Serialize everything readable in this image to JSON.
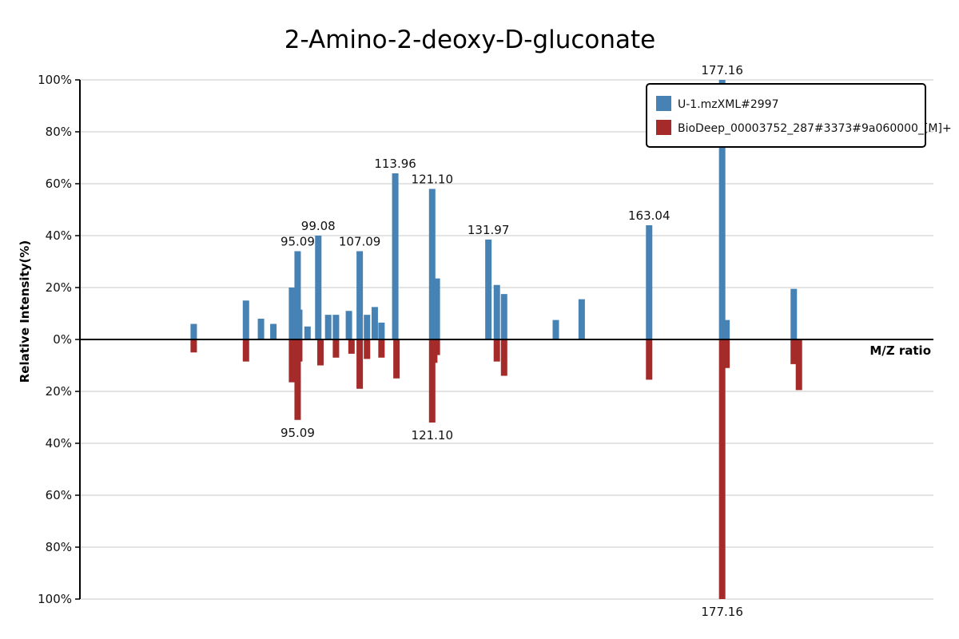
{
  "chart_data": {
    "type": "bar",
    "title": "2-Amino-2-deoxy-D-gluconate",
    "xlabel": "M/Z ratio",
    "ylabel": "Relative Intensity(%)",
    "y_ticks_top": [
      "100%",
      "80%",
      "60%",
      "40%",
      "20%",
      "0%"
    ],
    "y_ticks_bottom": [
      "20%",
      "40%",
      "60%",
      "80%",
      "100%"
    ],
    "ylim": [
      -100,
      100
    ],
    "xlim": [
      53,
      218
    ],
    "grid": true,
    "legend_position": "top-right",
    "series": [
      {
        "name": "U-1.mzXML#2997",
        "color": "#4682B4",
        "direction": "up",
        "peaks": [
          {
            "mz": 75.0,
            "intensity": 6
          },
          {
            "mz": 85.1,
            "intensity": 15
          },
          {
            "mz": 88.0,
            "intensity": 8
          },
          {
            "mz": 90.4,
            "intensity": 6
          },
          {
            "mz": 94.0,
            "intensity": 20
          },
          {
            "mz": 95.4,
            "intensity": 11.5
          },
          {
            "mz": 97.0,
            "intensity": 5
          },
          {
            "mz": 101.0,
            "intensity": 9.5
          },
          {
            "mz": 102.5,
            "intensity": 9.5
          },
          {
            "mz": 95.09,
            "intensity": 34,
            "label": "95.09"
          },
          {
            "mz": 105.0,
            "intensity": 11
          },
          {
            "mz": 99.08,
            "intensity": 40,
            "label": "99.08"
          },
          {
            "mz": 107.09,
            "intensity": 34,
            "label": "107.09"
          },
          {
            "mz": 108.5,
            "intensity": 9.5
          },
          {
            "mz": 110.0,
            "intensity": 12.5
          },
          {
            "mz": 111.3,
            "intensity": 6.5
          },
          {
            "mz": 113.96,
            "intensity": 64,
            "label": "113.96"
          },
          {
            "mz": 121.1,
            "intensity": 58,
            "label": "121.10"
          },
          {
            "mz": 122.0,
            "intensity": 23.5
          },
          {
            "mz": 131.97,
            "intensity": 38.5,
            "label": "131.97"
          },
          {
            "mz": 133.6,
            "intensity": 21
          },
          {
            "mz": 135.0,
            "intensity": 17.5
          },
          {
            "mz": 145.0,
            "intensity": 7.5
          },
          {
            "mz": 150.0,
            "intensity": 15.5
          },
          {
            "mz": 163.04,
            "intensity": 44,
            "label": "163.04"
          },
          {
            "mz": 177.16,
            "intensity": 100,
            "label": "177.16"
          },
          {
            "mz": 178.0,
            "intensity": 7.5
          },
          {
            "mz": 191.0,
            "intensity": 19.5
          }
        ]
      },
      {
        "name": "BioDeep_00003752_287#3373#9a060000_[M]+",
        "color": "#A52A2A",
        "direction": "down",
        "peaks": [
          {
            "mz": 75.0,
            "intensity": 5
          },
          {
            "mz": 85.1,
            "intensity": 8.5
          },
          {
            "mz": 94.0,
            "intensity": 16.5
          },
          {
            "mz": 95.4,
            "intensity": 8.5
          },
          {
            "mz": 99.5,
            "intensity": 10
          },
          {
            "mz": 102.5,
            "intensity": 7
          },
          {
            "mz": 95.09,
            "intensity": 31,
            "label": "95.09"
          },
          {
            "mz": 105.5,
            "intensity": 5.5
          },
          {
            "mz": 107.09,
            "intensity": 19
          },
          {
            "mz": 108.5,
            "intensity": 7.5
          },
          {
            "mz": 111.3,
            "intensity": 7
          },
          {
            "mz": 114.2,
            "intensity": 15
          },
          {
            "mz": 121.1,
            "intensity": 32,
            "label": "121.10"
          },
          {
            "mz": 121.5,
            "intensity": 9
          },
          {
            "mz": 122.0,
            "intensity": 6
          },
          {
            "mz": 133.6,
            "intensity": 8.5
          },
          {
            "mz": 135.0,
            "intensity": 14
          },
          {
            "mz": 163.04,
            "intensity": 15.5
          },
          {
            "mz": 177.16,
            "intensity": 100,
            "label": "177.16"
          },
          {
            "mz": 178.0,
            "intensity": 11
          },
          {
            "mz": 191.0,
            "intensity": 9.5
          },
          {
            "mz": 192.0,
            "intensity": 19.5
          }
        ]
      }
    ]
  }
}
